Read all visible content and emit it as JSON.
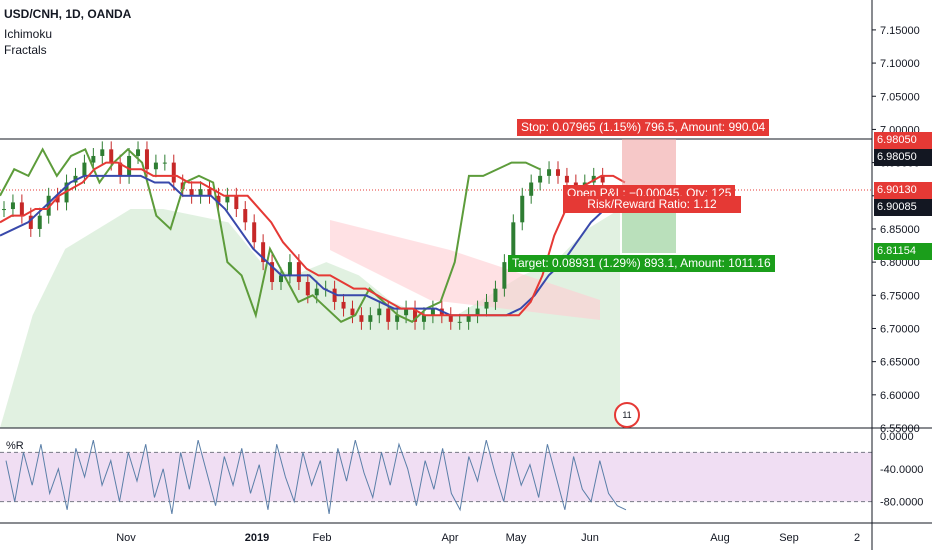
{
  "header": {
    "title": "USD/CNH, 1D, OANDA",
    "indicators": [
      "Ichimoku",
      "Fractals"
    ]
  },
  "oscillator": {
    "label": "%R"
  },
  "colors": {
    "candle_up": "#2e7d32",
    "candle_down": "#c62828",
    "tenkan": "#e53935",
    "kijun": "#3949ab",
    "chikou": "#5d9c3b",
    "stop": "#e53935",
    "target": "#1b9e1b",
    "willr": "#5b7fa8"
  },
  "positions": {
    "stop_text": "Stop: 0.07965 (1.15%) 796.5, Amount: 990.04",
    "open_text": "Open P&L: −0.00045, Qty: 125",
    "rr_text": "Risk/Reward Ratio: 1.12",
    "target_text": "Target: 0.08931 (1.29%) 893.1, Amount: 1011.16"
  },
  "price_tags": [
    {
      "label": "6.98050",
      "bg": "#e53935"
    },
    {
      "label": "6.98050",
      "bg": "#131722"
    },
    {
      "label": "6.90130",
      "bg": "#e53935"
    },
    {
      "label": "6.90085",
      "bg": "#131722"
    },
    {
      "label": "6.81154",
      "bg": "#1b9e1b"
    }
  ],
  "badge_text": "11",
  "chart_data": [
    {
      "type": "candlestick",
      "title": "USD/CNH, 1D, OANDA",
      "x_ticks": [
        "Nov",
        "2019",
        "Feb",
        "Apr",
        "May",
        "Jun",
        "Aug",
        "Sep",
        "2"
      ],
      "y_ticks": [
        "6.55000",
        "6.60000",
        "6.65000",
        "6.70000",
        "6.75000",
        "6.80000",
        "6.85000",
        "6.90000",
        "6.95000",
        "7.00000",
        "7.05000",
        "7.10000",
        "7.15000"
      ],
      "ylim": [
        6.55,
        7.18
      ],
      "close_approx": [
        6.88,
        6.89,
        6.87,
        6.85,
        6.87,
        6.9,
        6.89,
        6.92,
        6.93,
        6.95,
        6.96,
        6.97,
        6.95,
        6.93,
        6.96,
        6.97,
        6.94,
        6.95,
        6.95,
        6.92,
        6.91,
        6.9,
        6.91,
        6.9,
        6.89,
        6.9,
        6.88,
        6.86,
        6.83,
        6.8,
        6.77,
        6.78,
        6.8,
        6.77,
        6.75,
        6.76,
        6.76,
        6.74,
        6.73,
        6.72,
        6.71,
        6.72,
        6.73,
        6.71,
        6.72,
        6.73,
        6.71,
        6.72,
        6.73,
        6.72,
        6.71,
        6.71,
        6.72,
        6.73,
        6.74,
        6.76,
        6.8,
        6.86,
        6.9,
        6.92,
        6.93,
        6.94,
        6.93,
        6.92,
        6.91,
        6.92,
        6.93,
        6.92
      ],
      "tenkan_approx": [
        6.86,
        6.87,
        6.87,
        6.88,
        6.88,
        6.9,
        6.91,
        6.92,
        6.94,
        6.95,
        6.95,
        6.94,
        6.94,
        6.93,
        6.93,
        6.93,
        6.92,
        6.92,
        6.91,
        6.9,
        6.9,
        6.9,
        6.88,
        6.86,
        6.83,
        6.81,
        6.79,
        6.78,
        6.78,
        6.77,
        6.76,
        6.76,
        6.75,
        6.74,
        6.73,
        6.73,
        6.72,
        6.72,
        6.72,
        6.72,
        6.72,
        6.72,
        6.72,
        6.72,
        6.72,
        6.74,
        6.78,
        6.84,
        6.88,
        6.91,
        6.92,
        6.93,
        6.93,
        6.92
      ],
      "kijun_approx": [
        6.84,
        6.85,
        6.86,
        6.88,
        6.9,
        6.92,
        6.93,
        6.93,
        6.93,
        6.93,
        6.93,
        6.92,
        6.92,
        6.9,
        6.9,
        6.9,
        6.88,
        6.85,
        6.82,
        6.8,
        6.78,
        6.78,
        6.78,
        6.76,
        6.75,
        6.75,
        6.75,
        6.74,
        6.73,
        6.73,
        6.73,
        6.73,
        6.72,
        6.72,
        6.72,
        6.72,
        6.72,
        6.73,
        6.75,
        6.78,
        6.8,
        6.83,
        6.86,
        6.88
      ],
      "chikou_approx": [
        6.9,
        6.94,
        6.93,
        6.97,
        6.93,
        6.96,
        6.97,
        6.92,
        6.95,
        6.97,
        6.95,
        6.87,
        6.85,
        6.92,
        6.93,
        6.92,
        6.8,
        6.78,
        6.72,
        6.82,
        6.78,
        6.74,
        6.75,
        6.73,
        6.71,
        6.72,
        6.76,
        6.74,
        6.72,
        6.71,
        6.73,
        6.74,
        6.8,
        6.93,
        6.93,
        6.94,
        6.95,
        6.95,
        6.94
      ],
      "cloud_approx": [
        6.55,
        6.72,
        6.82,
        6.85,
        6.88,
        6.88,
        6.87,
        6.86,
        6.8,
        6.78,
        6.8,
        6.78,
        6.74,
        6.72,
        6.72,
        6.75,
        6.78,
        6.8,
        6.85,
        6.88
      ]
    },
    {
      "type": "line",
      "title": "%R",
      "y_ticks": [
        "0.0000",
        "-40.0000",
        "-80.0000"
      ],
      "ylim": [
        -100,
        0
      ],
      "values_approx": [
        -30,
        -80,
        -20,
        -60,
        -10,
        -70,
        -40,
        -90,
        -15,
        -50,
        -5,
        -60,
        -30,
        -80,
        -20,
        -55,
        -10,
        -75,
        -40,
        -95,
        -20,
        -65,
        -5,
        -45,
        -85,
        -25,
        -60,
        -15,
        -70,
        -35,
        -90,
        -10,
        -50,
        -80,
        -20,
        -60,
        -30,
        -95,
        -15,
        -55,
        -5,
        -45,
        -75,
        -20,
        -60,
        -10,
        -40,
        -85,
        -30,
        -65,
        -15,
        -70,
        -90,
        -25,
        -55,
        -5,
        -45,
        -80,
        -20,
        -60,
        -35,
        -75,
        -10,
        -50,
        -90,
        -25,
        -65,
        -80,
        -30,
        -70,
        -85,
        -90
      ]
    }
  ]
}
